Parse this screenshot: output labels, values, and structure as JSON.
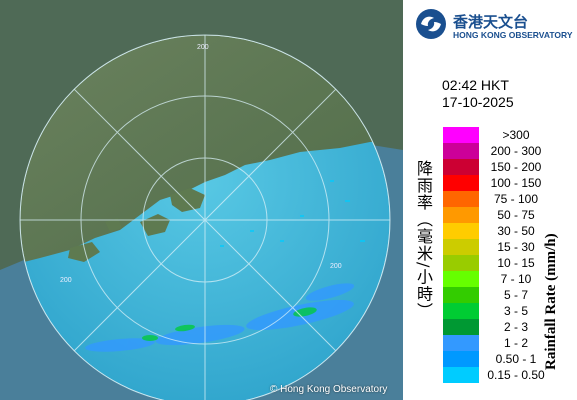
{
  "logo": {
    "name_zh": "香港天文台",
    "name_en": "HONG KONG OBSERVATORY"
  },
  "timestamp": {
    "time": "02:42 HKT",
    "date": "17-10-2025"
  },
  "map": {
    "range_labels": [
      "200",
      "200",
      "200"
    ],
    "copyright": "© Hong Kong Observatory",
    "colors": {
      "sea_inside": "#3fb3d6",
      "sea_outside": "#4a7f9a",
      "land": "#5d7a52",
      "range_ring": "#d9f1f8"
    }
  },
  "legend": {
    "title_zh": "降雨率（毫米/小時）",
    "title_en": "Rainfall Rate (mm/h)",
    "items": [
      {
        "label": ">300",
        "color": "#ff00ff"
      },
      {
        "label": "200 - 300",
        "color": "#cc0099"
      },
      {
        "label": "150 - 200",
        "color": "#cc0033"
      },
      {
        "label": "100 - 150",
        "color": "#ff0000"
      },
      {
        "label": "75 - 100",
        "color": "#ff6600"
      },
      {
        "label": "50 - 75",
        "color": "#ff9900"
      },
      {
        "label": "30 - 50",
        "color": "#ffcc00"
      },
      {
        "label": "15 - 30",
        "color": "#cccc00"
      },
      {
        "label": "10 - 15",
        "color": "#99cc00"
      },
      {
        "label": "7 - 10",
        "color": "#66ff00"
      },
      {
        "label": "5 - 7",
        "color": "#33cc00"
      },
      {
        "label": "3 - 5",
        "color": "#00cc33"
      },
      {
        "label": "2 - 3",
        "color": "#009933"
      },
      {
        "label": "1 - 2",
        "color": "#3399ff"
      },
      {
        "label": "0.50 - 1",
        "color": "#0099ff"
      },
      {
        "label": "0.15 - 0.50",
        "color": "#00ccff"
      }
    ]
  }
}
